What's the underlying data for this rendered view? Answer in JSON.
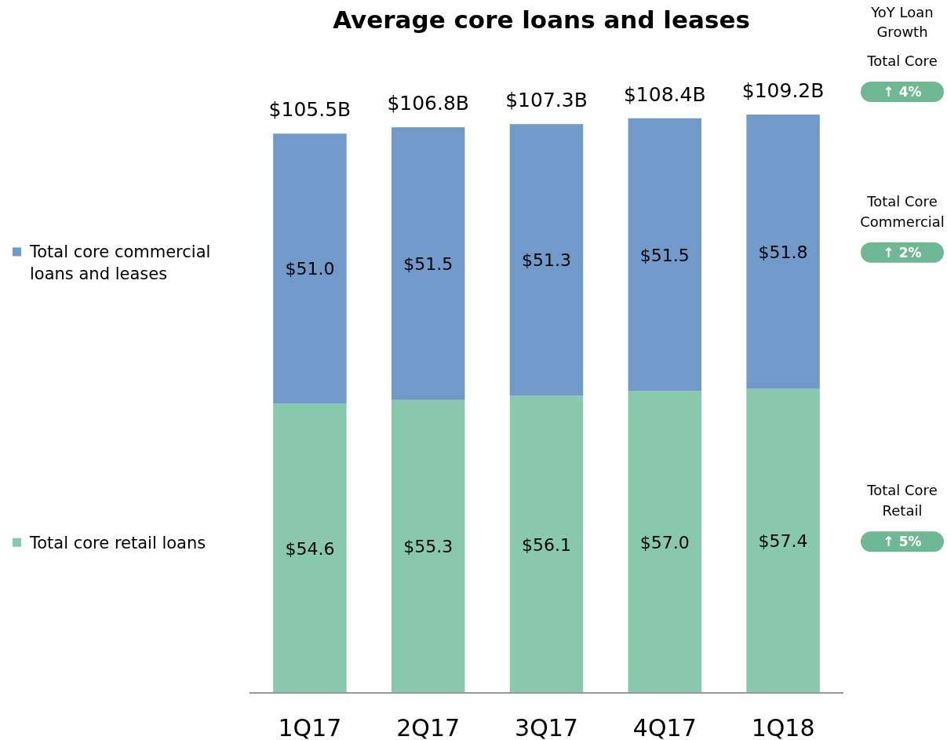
{
  "chart_data": {
    "type": "bar",
    "title": "Average core loans and leases",
    "stacked": true,
    "legend": "left",
    "data_labels": false,
    "categories": [
      "1Q17",
      "2Q17",
      "3Q17",
      "4Q17",
      "1Q18"
    ],
    "series": [
      {
        "name": "Total core retail loans",
        "color": "#88c9ae",
        "values": [
          54.6,
          55.3,
          56.1,
          57.0,
          57.4
        ],
        "value_labels": [
          "$54.6",
          "$55.3",
          "$56.1",
          "$57.0",
          "$57.4"
        ]
      },
      {
        "name": "Total core commercial loans and leases",
        "color": "#7199ca",
        "values": [
          51.0,
          51.5,
          51.3,
          51.5,
          51.8
        ],
        "value_labels": [
          "$51.0",
          "$51.5",
          "$51.3",
          "$51.5",
          "$51.8"
        ]
      }
    ],
    "totals": [
      "$105.5B",
      "$106.8B",
      "$107.3B",
      "$108.4B",
      "$109.2B"
    ],
    "annotations": [
      "YoY Loan Growth",
      "Total Core",
      "↑ 4%",
      "Total Core Commercial",
      "↑ 2%",
      "Total Core Retail",
      "↑ 5%"
    ]
  }
}
